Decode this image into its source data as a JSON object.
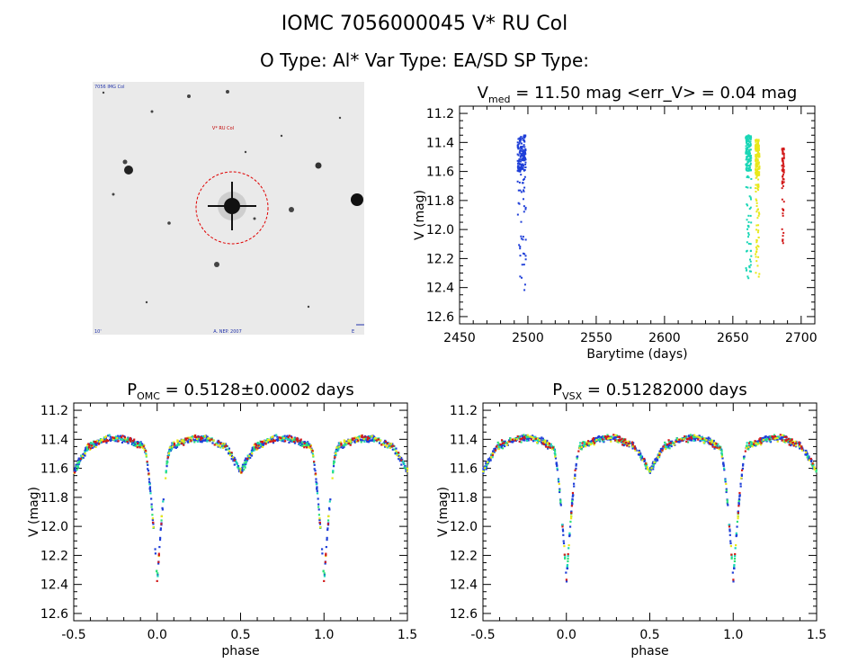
{
  "header": {
    "title": "IOMC 7056000045    V* RU Col",
    "subtitle": "O Type: Al*  Var Type: EA/SD  SP Type:"
  },
  "finder": {
    "top_left_label": "7056 IMG Col",
    "target_label": "V* RU Col",
    "bottom_left_label": "10'",
    "bottom_center_label": "A. NEP. 2007",
    "bottom_right_label": "E"
  },
  "colors": {
    "blue": "#1f3fd8",
    "cyan": "#19d6b6",
    "green": "#2ce07a",
    "yellow": "#e8e81a",
    "red": "#d21a1a"
  },
  "chart_data": [
    {
      "id": "lightcurve",
      "type": "scatter",
      "title_main": "V",
      "title_sub": "med",
      "title_rest": " = 11.50 mag <err_V> = 0.04 mag",
      "xlabel": "Barytime (days)",
      "ylabel": "V (mag)",
      "xlim": [
        2450,
        2710
      ],
      "ylim": [
        12.65,
        11.15
      ],
      "xticks": [
        "2450",
        "2500",
        "2550",
        "2600",
        "2650",
        "2700"
      ],
      "yticks": [
        "11.2",
        "11.4",
        "11.6",
        "11.8",
        "12.0",
        "12.2",
        "12.4",
        "12.6"
      ],
      "series": [
        {
          "color": "blue",
          "t_range": [
            2492.5,
            2498.5
          ],
          "v_range": [
            11.35,
            12.42
          ]
        },
        {
          "color": "cyan",
          "t_range": [
            2659.5,
            2663.5
          ],
          "v_range": [
            11.35,
            12.37
          ]
        },
        {
          "color": "yellow",
          "t_range": [
            2666.5,
            2669.5
          ],
          "v_range": [
            11.38,
            12.33
          ]
        },
        {
          "color": "red",
          "t_range": [
            2686,
            2687.5
          ],
          "v_range": [
            11.44,
            12.2
          ]
        }
      ]
    },
    {
      "id": "phase_omc",
      "type": "scatter",
      "title_main": "P",
      "title_sub": "OMC",
      "title_rest": " = 0.5128±0.0002 days",
      "xlabel": "phase",
      "ylabel": "V (mag)",
      "xlim": [
        -0.5,
        1.5
      ],
      "ylim": [
        12.65,
        11.15
      ],
      "xticks": [
        "-0.5",
        "0.0",
        "0.5",
        "1.0",
        "1.5"
      ],
      "yticks": [
        "11.2",
        "11.4",
        "11.6",
        "11.8",
        "12.0",
        "12.2",
        "12.4",
        "12.6"
      ],
      "period_days": 0.5128,
      "primary_min_mag": 12.38,
      "secondary_min_mag": 11.62,
      "max_mag": 11.43
    },
    {
      "id": "phase_vsx",
      "type": "scatter",
      "title_main": "P",
      "title_sub": "VSX",
      "title_rest": " = 0.51282000 days",
      "xlabel": "phase",
      "ylabel": "V (mag)",
      "xlim": [
        -0.5,
        1.5
      ],
      "ylim": [
        12.65,
        11.15
      ],
      "xticks": [
        "-0.5",
        "0.0",
        "0.5",
        "1.0",
        "1.5"
      ],
      "yticks": [
        "11.2",
        "11.4",
        "11.6",
        "11.8",
        "12.0",
        "12.2",
        "12.4",
        "12.6"
      ],
      "period_days": 0.51282,
      "primary_min_mag": 12.38,
      "secondary_min_mag": 11.62,
      "max_mag": 11.43
    }
  ]
}
